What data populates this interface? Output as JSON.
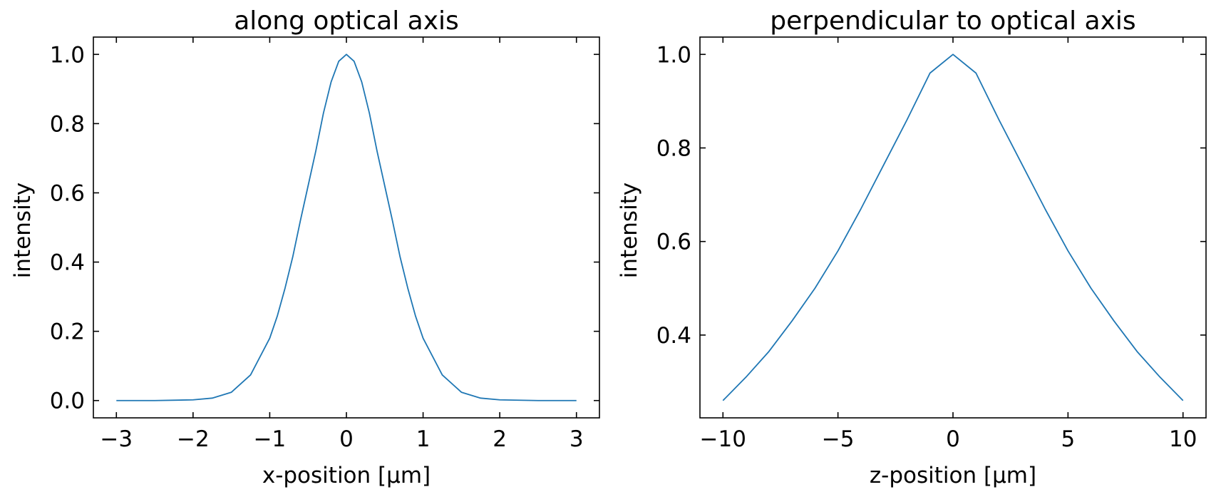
{
  "colors": {
    "series": "#1f77b4",
    "axes": "#000000",
    "background": "#ffffff"
  },
  "chart_data": [
    {
      "type": "line",
      "title": "along optical axis",
      "xlabel": "x-position [μm]",
      "ylabel": "intensity",
      "xlim": [
        -3.3,
        3.3
      ],
      "ylim": [
        -0.05,
        1.05
      ],
      "grid": false,
      "x_ticks": [
        -3,
        -2,
        -1,
        0,
        1,
        2,
        3
      ],
      "x_tick_labels": [
        "−3",
        "−2",
        "−1",
        "0",
        "1",
        "2",
        "3"
      ],
      "y_ticks": [
        0.0,
        0.2,
        0.4,
        0.6,
        0.8,
        1.0
      ],
      "y_tick_labels": [
        "0.0",
        "0.2",
        "0.4",
        "0.6",
        "0.8",
        "1.0"
      ],
      "series": [
        {
          "x": [
            -3.0,
            -2.5,
            -2.0,
            -1.75,
            -1.5,
            -1.25,
            -1.0,
            -0.9,
            -0.8,
            -0.7,
            -0.6,
            -0.5,
            -0.4,
            -0.3,
            -0.2,
            -0.1,
            0.0,
            0.1,
            0.2,
            0.3,
            0.4,
            0.5,
            0.6,
            0.7,
            0.8,
            0.9,
            1.0,
            1.25,
            1.5,
            1.75,
            2.0,
            2.5,
            3.0
          ],
          "y": [
            0.0,
            0.0,
            0.002,
            0.007,
            0.024,
            0.074,
            0.18,
            0.245,
            0.325,
            0.415,
            0.52,
            0.62,
            0.72,
            0.83,
            0.92,
            0.98,
            1.0,
            0.98,
            0.92,
            0.83,
            0.72,
            0.62,
            0.52,
            0.415,
            0.325,
            0.245,
            0.18,
            0.074,
            0.024,
            0.007,
            0.002,
            0.0,
            0.0
          ]
        }
      ]
    },
    {
      "type": "line",
      "title": "perpendicular to optical axis",
      "xlabel": "z-position [μm]",
      "ylabel": "intensity",
      "xlim": [
        -11,
        11
      ],
      "ylim": [
        0.223,
        1.037
      ],
      "grid": false,
      "x_ticks": [
        -10,
        -5,
        0,
        5,
        10
      ],
      "x_tick_labels": [
        "−10",
        "−5",
        "0",
        "5",
        "10"
      ],
      "y_ticks": [
        0.4,
        0.6,
        0.8,
        1.0
      ],
      "y_tick_labels": [
        "0.4",
        "0.6",
        "0.8",
        "1.0"
      ],
      "series": [
        {
          "x": [
            -10,
            -9,
            -8,
            -7,
            -6,
            -5,
            -4,
            -3,
            -2,
            -1,
            0,
            1,
            2,
            3,
            4,
            5,
            6,
            7,
            8,
            9,
            10
          ],
          "y": [
            0.26,
            0.31,
            0.365,
            0.43,
            0.5,
            0.58,
            0.67,
            0.765,
            0.86,
            0.96,
            1.0,
            0.96,
            0.86,
            0.765,
            0.67,
            0.58,
            0.5,
            0.43,
            0.365,
            0.31,
            0.26
          ]
        }
      ]
    }
  ]
}
